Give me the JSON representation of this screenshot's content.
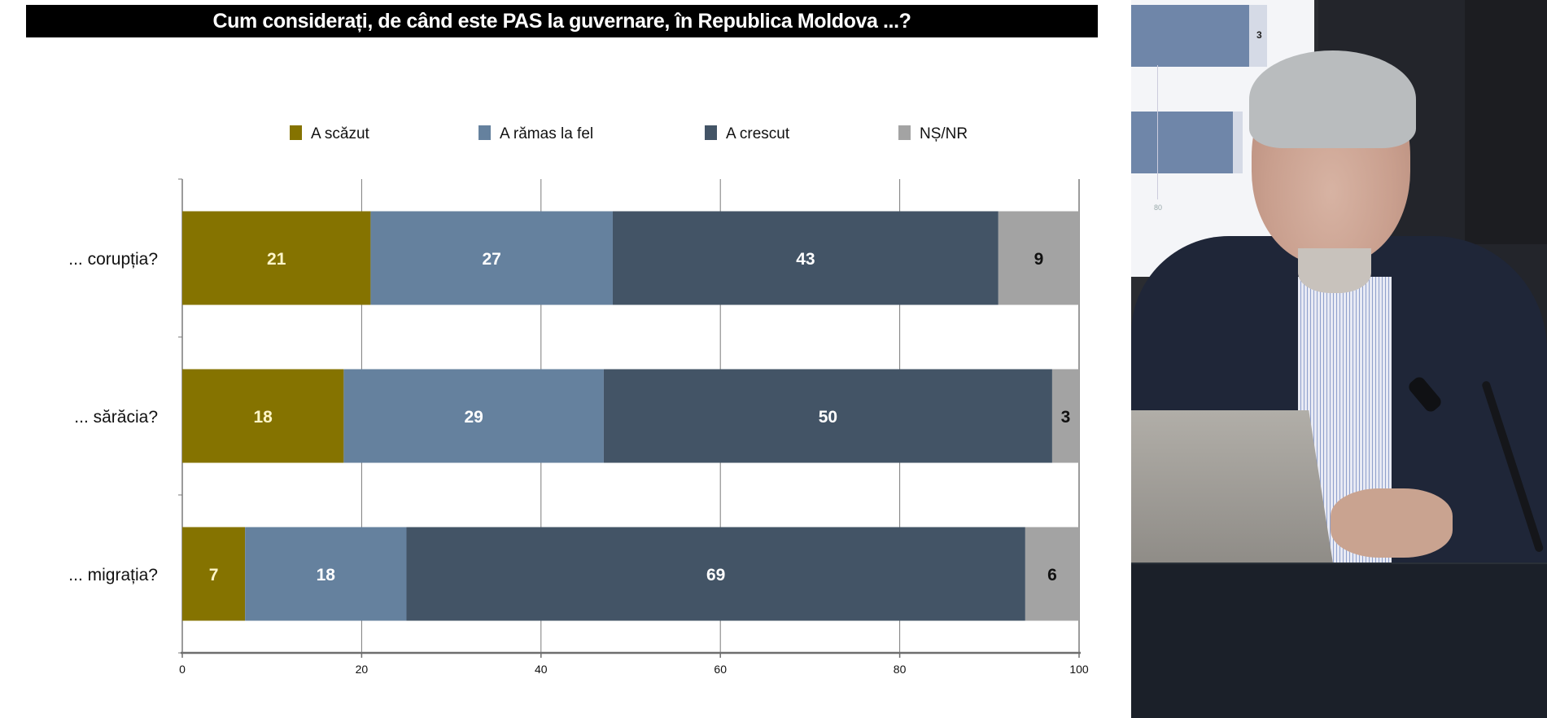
{
  "slide": {
    "title": "Cum considerați, de când este PAS la guvernare, în Republica Moldova ...?"
  },
  "chart_data": {
    "type": "bar",
    "orientation": "horizontal",
    "stacked": true,
    "title": "Cum considerați, de când este PAS la guvernare, în Republica Moldova ...?",
    "xlabel": "",
    "ylabel": "",
    "xlim": [
      0,
      100
    ],
    "xticks": [
      0,
      20,
      40,
      60,
      80,
      100
    ],
    "grid": true,
    "legend_position": "top",
    "categories": [
      "... corupția?",
      "... sărăcia?",
      "... migrația?"
    ],
    "series": [
      {
        "name": "A scăzut",
        "color": "#857300",
        "label_color": "#fff6c8",
        "values": [
          21,
          18,
          7
        ]
      },
      {
        "name": "A rămas la fel",
        "color": "#65819e",
        "label_color": "#ffffff",
        "values": [
          27,
          29,
          18
        ]
      },
      {
        "name": "A crescut",
        "color": "#435466",
        "label_color": "#ffffff",
        "values": [
          43,
          50,
          69
        ]
      },
      {
        "name": "NȘ/NR",
        "color": "#a3a3a3",
        "label_color": "#111111",
        "values": [
          9,
          3,
          6
        ]
      }
    ]
  },
  "video_panel": {
    "background_screen_value": "3",
    "background_screen_tick": "80"
  }
}
